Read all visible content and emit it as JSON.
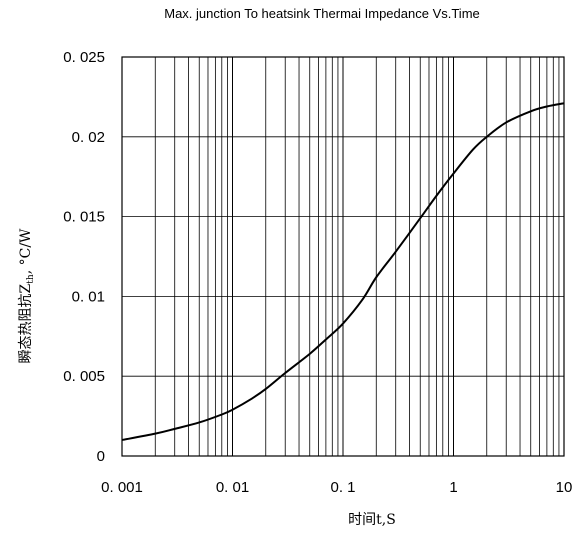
{
  "chart_data": {
    "type": "line",
    "title": "Max. junction To heatsink Thermai Impedance Vs.Time",
    "xlabel": "时间t,S",
    "ylabel": {
      "prefix": "瞬态热阻抗Z",
      "subscript": "th",
      "suffix": ", °C/W"
    },
    "x_scale": "log",
    "xlim": [
      0.001,
      10
    ],
    "ylim": [
      0,
      0.025
    ],
    "grid": true,
    "x_ticks": [
      {
        "value": 0.001,
        "label": "0. 001"
      },
      {
        "value": 0.01,
        "label": "0. 01"
      },
      {
        "value": 0.1,
        "label": "0. 1"
      },
      {
        "value": 1,
        "label": "1"
      },
      {
        "value": 10,
        "label": "10"
      }
    ],
    "y_ticks": [
      {
        "value": 0,
        "label": "0"
      },
      {
        "value": 0.005,
        "label": "0. 005"
      },
      {
        "value": 0.01,
        "label": "0. 01"
      },
      {
        "value": 0.015,
        "label": "0. 015"
      },
      {
        "value": 0.02,
        "label": "0. 02"
      },
      {
        "value": 0.025,
        "label": "0. 025"
      }
    ],
    "series": [
      {
        "color": "#000000",
        "x": [
          0.001,
          0.002,
          0.003,
          0.005,
          0.008,
          0.01,
          0.015,
          0.02,
          0.03,
          0.05,
          0.07,
          0.1,
          0.15,
          0.2,
          0.3,
          0.5,
          0.7,
          1,
          1.5,
          2,
          3,
          5,
          7,
          10
        ],
        "y": [
          0.001,
          0.0014,
          0.0017,
          0.0021,
          0.0026,
          0.0029,
          0.0036,
          0.0042,
          0.0052,
          0.0064,
          0.0073,
          0.0083,
          0.0098,
          0.0112,
          0.0128,
          0.0149,
          0.0163,
          0.0177,
          0.0192,
          0.02,
          0.0209,
          0.0216,
          0.0219,
          0.0221
        ]
      }
    ]
  }
}
